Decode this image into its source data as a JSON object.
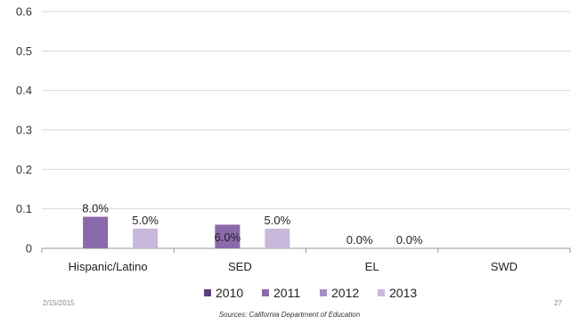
{
  "chart_data": {
    "type": "bar",
    "categories": [
      "Hispanic/Latino",
      "SED",
      "EL",
      "SWD"
    ],
    "series": [
      {
        "name": "2010",
        "color": "#5b3f80",
        "values": [
          null,
          null,
          null,
          null
        ],
        "labels": [
          "",
          "",
          "",
          ""
        ]
      },
      {
        "name": "2011",
        "color": "#8a6aaa",
        "values": [
          0.08,
          0.06,
          0,
          null
        ],
        "labels": [
          "8.0%",
          "6.0%",
          "0.0%",
          ""
        ]
      },
      {
        "name": "2012",
        "color": "#a88fc4",
        "values": [
          null,
          null,
          null,
          null
        ],
        "labels": [
          "",
          "",
          "",
          ""
        ]
      },
      {
        "name": "2013",
        "color": "#c8b8dc",
        "values": [
          0.05,
          0.05,
          0,
          null
        ],
        "labels": [
          "5.0%",
          "5.0%",
          "0.0%",
          ""
        ]
      }
    ],
    "yticks": [
      "0",
      "0.1",
      "0.2",
      "0.3",
      "0.4",
      "0.5",
      "0.6"
    ],
    "ylim": [
      0,
      0.6
    ],
    "grid": true,
    "legend_position": "bottom"
  },
  "footer": {
    "date": "2/15/2015",
    "page": "27",
    "source": "Sources:  California Department of Education"
  }
}
